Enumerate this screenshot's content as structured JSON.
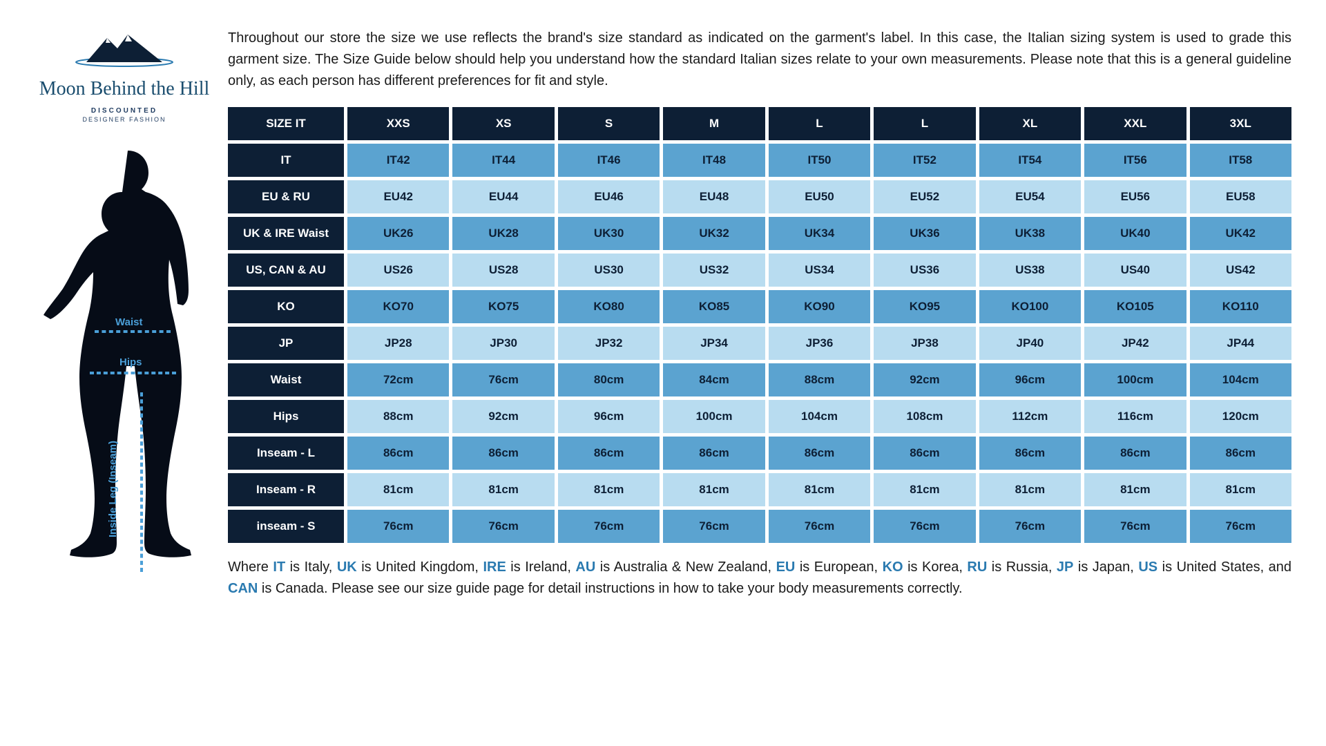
{
  "brand": {
    "name": "Moon Behind the Hill",
    "tagline": "DISCOUNTED",
    "tagline_sub": "DESIGNER FASHION",
    "logo_colors": {
      "mountain": "#0d1f35",
      "outline": "#2a7ab0"
    }
  },
  "silhouette_labels": {
    "waist": "Waist",
    "hips": "Hips",
    "inseam": "Inside Leg (Inseam)"
  },
  "intro": "Throughout our store the size we use reflects the brand's size standard as indicated on the garment's label. In this case, the Italian sizing system is used to grade this garment size. The Size Guide below should help you understand how the standard Italian sizes relate to your own measurements. Please note that this is a general guideline only, as each person has different preferences for fit and style.",
  "table": {
    "header_label": "SIZE IT",
    "headers": [
      "XXS",
      "XS",
      "S",
      "M",
      "L",
      "L",
      "XL",
      "XXL",
      "3XL"
    ],
    "rows": [
      {
        "label": "IT",
        "style": "med",
        "cells": [
          "IT42",
          "IT44",
          "IT46",
          "IT48",
          "IT50",
          "IT52",
          "IT54",
          "IT56",
          "IT58"
        ]
      },
      {
        "label": "EU & RU",
        "style": "light",
        "cells": [
          "EU42",
          "EU44",
          "EU46",
          "EU48",
          "EU50",
          "EU52",
          "EU54",
          "EU56",
          "EU58"
        ]
      },
      {
        "label": "UK & IRE Waist",
        "style": "med",
        "cells": [
          "UK26",
          "UK28",
          "UK30",
          "UK32",
          "UK34",
          "UK36",
          "UK38",
          "UK40",
          "UK42"
        ]
      },
      {
        "label": "US, CAN & AU",
        "style": "light",
        "cells": [
          "US26",
          "US28",
          "US30",
          "US32",
          "US34",
          "US36",
          "US38",
          "US40",
          "US42"
        ]
      },
      {
        "label": "KO",
        "style": "med",
        "cells": [
          "KO70",
          "KO75",
          "KO80",
          "KO85",
          "KO90",
          "KO95",
          "KO100",
          "KO105",
          "KO110"
        ]
      },
      {
        "label": "JP",
        "style": "light",
        "cells": [
          "JP28",
          "JP30",
          "JP32",
          "JP34",
          "JP36",
          "JP38",
          "JP40",
          "JP42",
          "JP44"
        ]
      },
      {
        "label": "Waist",
        "style": "med",
        "cells": [
          "72cm",
          "76cm",
          "80cm",
          "84cm",
          "88cm",
          "92cm",
          "96cm",
          "100cm",
          "104cm"
        ]
      },
      {
        "label": "Hips",
        "style": "light",
        "cells": [
          "88cm",
          "92cm",
          "96cm",
          "100cm",
          "104cm",
          "108cm",
          "112cm",
          "116cm",
          "120cm"
        ]
      },
      {
        "label": "Inseam - L",
        "style": "med",
        "cells": [
          "86cm",
          "86cm",
          "86cm",
          "86cm",
          "86cm",
          "86cm",
          "86cm",
          "86cm",
          "86cm"
        ]
      },
      {
        "label": "Inseam - R",
        "style": "light",
        "cells": [
          "81cm",
          "81cm",
          "81cm",
          "81cm",
          "81cm",
          "81cm",
          "81cm",
          "81cm",
          "81cm"
        ]
      },
      {
        "label": "inseam - S",
        "style": "med",
        "cells": [
          "76cm",
          "76cm",
          "76cm",
          "76cm",
          "76cm",
          "76cm",
          "76cm",
          "76cm",
          "76cm"
        ]
      }
    ],
    "colors": {
      "dark": "#0d1f35",
      "med": "#5ba3d0",
      "light": "#b8dcf0",
      "text_dark": "#ffffff",
      "text_cell": "#0d1f35"
    }
  },
  "footer": {
    "codes": [
      {
        "code": "IT",
        "name": "Italy"
      },
      {
        "code": "UK",
        "name": "United Kingdom"
      },
      {
        "code": "IRE",
        "name": "Ireland"
      },
      {
        "code": "AU",
        "name": "Australia & New Zealand"
      },
      {
        "code": "EU",
        "name": "European"
      },
      {
        "code": "KO",
        "name": "Korea"
      },
      {
        "code": "RU",
        "name": "Russia"
      },
      {
        "code": "JP",
        "name": "Japan"
      },
      {
        "code": "US",
        "name": "United States"
      },
      {
        "code": "CAN",
        "name": "Canada"
      }
    ],
    "suffix": "Please see our size guide page for detail instructions in how to take your body measurements correctly."
  }
}
